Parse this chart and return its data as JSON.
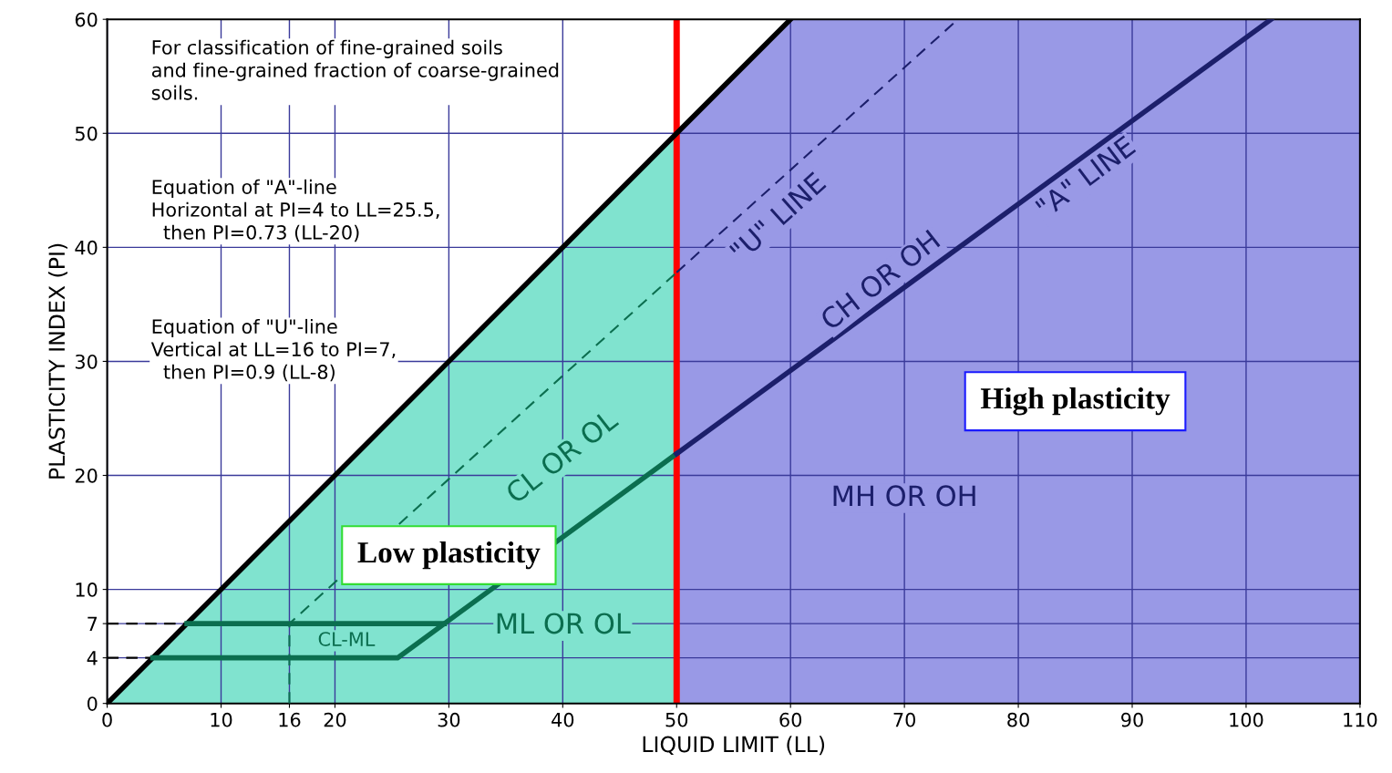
{
  "chart_data": {
    "type": "line",
    "xlabel": "LIQUID LIMIT (LL)",
    "ylabel": "PLASTICITY INDEX (PI)",
    "xlim": [
      0,
      110
    ],
    "ylim": [
      0,
      60
    ],
    "xticks": [
      0,
      10,
      16,
      20,
      30,
      40,
      50,
      60,
      70,
      80,
      90,
      100,
      110
    ],
    "yticks": [
      0,
      4,
      7,
      10,
      20,
      30,
      40,
      50,
      60
    ],
    "grid": true,
    "series": [
      {
        "type": "area",
        "color": "#80e3cf",
        "x": [
          0,
          50
        ],
        "values": [
          0,
          50
        ]
      },
      {
        "type": "area",
        "color": "#9999e6",
        "x": [
          50,
          60,
          110
        ],
        "values": [
          50,
          60,
          60
        ]
      },
      {
        "color": "#000000",
        "x": [
          0,
          60
        ],
        "values": [
          0,
          60
        ]
      },
      {
        "color": "#000000",
        "line_style": "dashed",
        "x": [
          0,
          4
        ],
        "values": [
          4,
          4
        ]
      },
      {
        "color": "#000000",
        "line_style": "dashed",
        "x": [
          0,
          7
        ],
        "values": [
          7,
          7
        ]
      },
      {
        "color": "#0b6e4f",
        "x": [
          7,
          29.6
        ],
        "values": [
          7,
          7
        ]
      },
      {
        "color": "#0b6e4f",
        "x": [
          4,
          25.5,
          50
        ],
        "values": [
          4,
          4,
          21.9
        ]
      },
      {
        "color": "#1c1f6b",
        "x": [
          50,
          102.2
        ],
        "values": [
          21.9,
          60
        ]
      },
      {
        "color": "#0b6e4f",
        "line_style": "dashed",
        "x": [
          16,
          16,
          50
        ],
        "values": [
          0,
          7,
          37.8
        ]
      },
      {
        "color": "#1c1f6b",
        "line_style": "dashed",
        "x": [
          50,
          74.7
        ],
        "values": [
          37.8,
          60
        ]
      }
    ],
    "ref_lines": [
      {
        "axis": "x",
        "value": 50,
        "color": "#ff0000"
      }
    ],
    "annotations": [
      "For classification of fine-grained soils\nand fine-grained fraction of coarse-grained\nsoils.",
      "Equation of \"A\"-line\nHorizontal at PI=4 to LL=25.5,\n  then PI=0.73 (LL-20)",
      "Equation of \"U\"-line\nVertical at LL=16 to PI=7,\n  then PI=0.9 (LL-8)",
      "CL-ML",
      "ML OR OL",
      "CL OR OL",
      "CH OR OH",
      "MH OR OH",
      "\"U\" LINE",
      "\"A\" LINE",
      "Low plasticity",
      "High plasticity"
    ]
  }
}
